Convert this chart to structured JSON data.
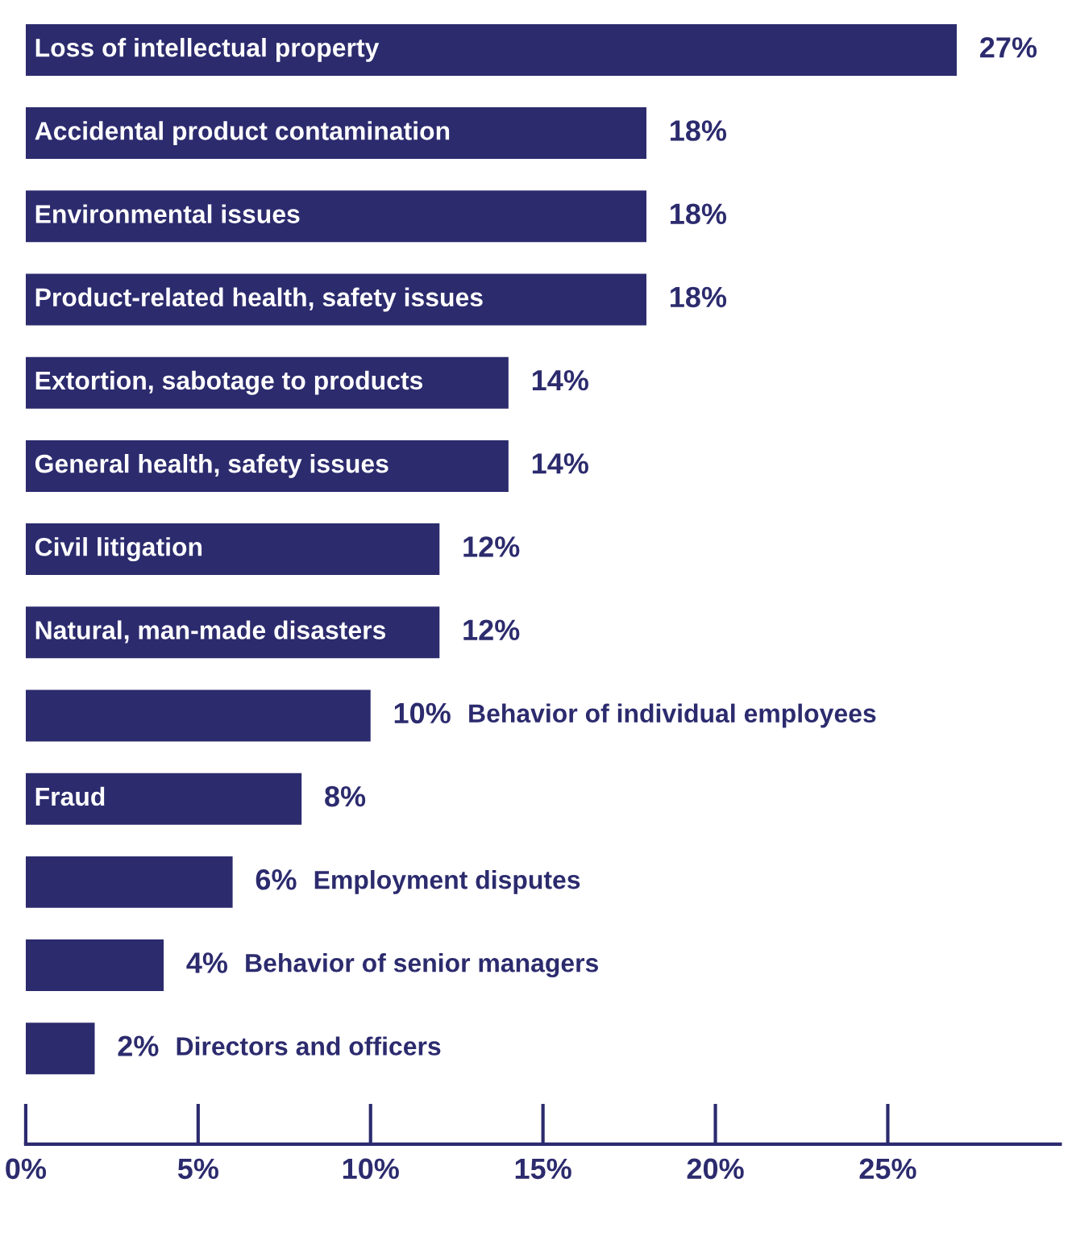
{
  "chart_data": {
    "type": "bar",
    "orientation": "horizontal",
    "categories": [
      "Loss of intellectual property",
      "Accidental product contamination",
      "Environmental issues",
      "Product-related health, safety issues",
      "Extortion, sabotage to products",
      "General health, safety issues",
      "Civil litigation",
      "Natural, man-made disasters",
      "Behavior of individual employees",
      "Fraud",
      "Employment disputes",
      "Behavior of senior managers",
      "Directors and officers"
    ],
    "values": [
      27,
      18,
      18,
      18,
      14,
      14,
      12,
      12,
      10,
      8,
      6,
      4,
      2
    ],
    "value_labels": [
      "27%",
      "18%",
      "18%",
      "18%",
      "14%",
      "14%",
      "12%",
      "12%",
      "10%",
      "8%",
      "6%",
      "4%",
      "2%"
    ],
    "color": "#2c2b6e",
    "xlim": [
      0,
      30
    ],
    "xticks": [
      {
        "value": 0,
        "label": "0%"
      },
      {
        "value": 5,
        "label": "5%"
      },
      {
        "value": 10,
        "label": "10%"
      },
      {
        "value": 15,
        "label": "15%"
      },
      {
        "value": 20,
        "label": "20%"
      },
      {
        "value": 25,
        "label": "25%"
      }
    ],
    "grid": false,
    "legend": false
  }
}
